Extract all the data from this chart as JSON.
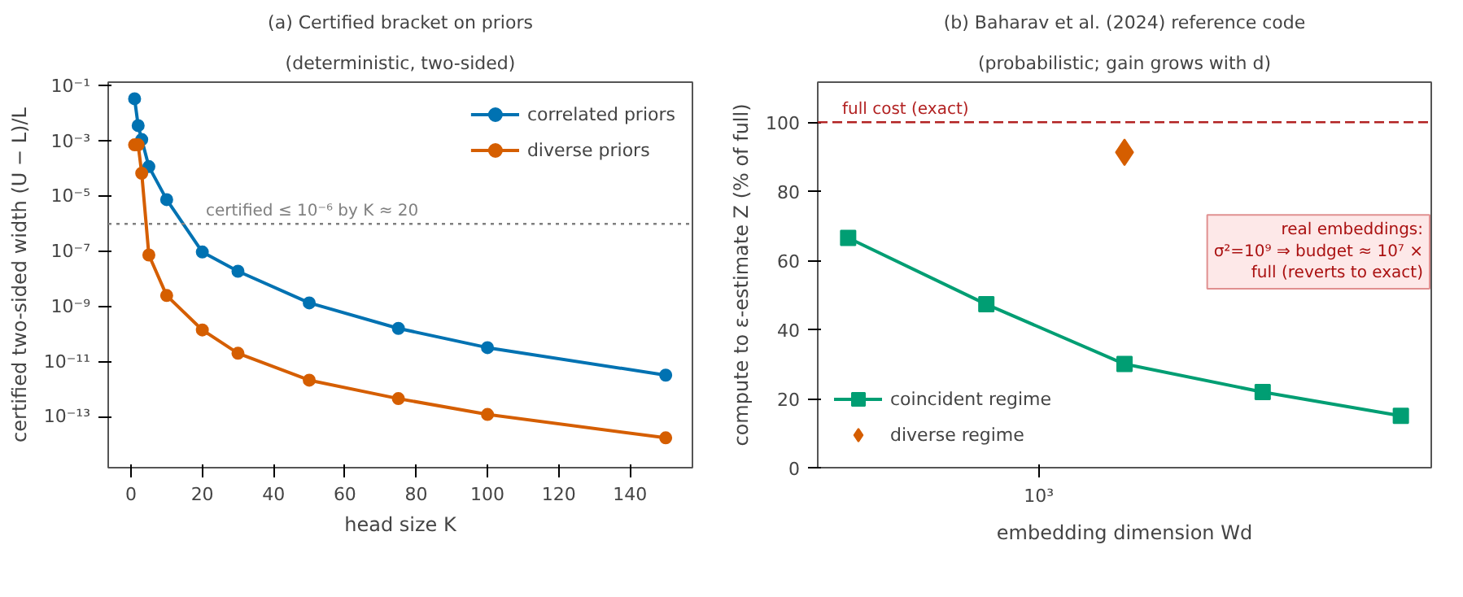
{
  "chart_data": [
    {
      "type": "line",
      "title": "(a) Certified bracket on priors",
      "subtitle": "(deterministic, two-sided)",
      "xlabel": "head size K",
      "ylabel": "certified two-sided width (U − L)/L",
      "log": "y",
      "grid": false,
      "legend": "top right",
      "marker": "circle",
      "line_style": "solid",
      "xlim": [
        -6.4,
        157.5
      ],
      "xticks": [
        0,
        20,
        40,
        60,
        80,
        100,
        120,
        140
      ],
      "ylim": [
        1.4e-15,
        0.14
      ],
      "yticks": [
        {
          "value": 0.1,
          "label": "10⁻¹"
        },
        {
          "value": 0.001,
          "label": "10⁻³"
        },
        {
          "value": 1e-05,
          "label": "10⁻⁵"
        },
        {
          "value": 1e-07,
          "label": "10⁻⁷"
        },
        {
          "value": 1e-09,
          "label": "10⁻⁹"
        },
        {
          "value": 1e-11,
          "label": "10⁻¹¹"
        },
        {
          "value": 1e-13,
          "label": "10⁻¹³"
        }
      ],
      "series": [
        {
          "name": "correlated priors",
          "color": "#0072b2",
          "x": [
            1,
            2,
            3,
            5,
            10,
            20,
            30,
            50,
            75,
            100,
            150
          ],
          "values": [
            0.035,
            0.0037,
            0.00115,
            0.00012,
            7.6e-06,
            9.5e-08,
            1.9e-08,
            1.35e-09,
            1.6e-10,
            3.2e-11,
            3.2e-12
          ]
        },
        {
          "name": "diverse priors",
          "color": "#d55e00",
          "x": [
            1,
            2,
            3,
            5,
            10,
            20,
            30,
            50,
            75,
            100,
            150
          ],
          "values": [
            0.00074,
            0.00074,
            6.9e-05,
            7.4e-08,
            2.5e-09,
            1.4e-10,
            2e-11,
            2.1e-12,
            4.5e-13,
            1.2e-13,
            1.7e-14
          ]
        }
      ],
      "ref_lines": [
        {
          "axis": "y",
          "value": 1e-06,
          "label": "certified ≤ 10⁻⁶ by K ≈ 20",
          "color": "#808080",
          "line_style": "dotted"
        }
      ]
    },
    {
      "type": "line",
      "title": "(b) Baharav et al. (2024) reference code",
      "subtitle": "(probabilistic; gain grows with d)",
      "xlabel": "embedding dimension Wd",
      "ylabel": "compute to ε-estimate Z (% of full)",
      "grid": false,
      "legend": "bottom left",
      "categories": [
        null,
        null,
        null,
        null,
        null
      ],
      "ylim": [
        0,
        111.6
      ],
      "yticks": [
        {
          "value": 0,
          "label": "0"
        },
        {
          "value": 20,
          "label": "20"
        },
        {
          "value": 40,
          "label": "40"
        },
        {
          "value": 60,
          "label": "60"
        },
        {
          "value": 80,
          "label": "80"
        },
        {
          "value": 100,
          "label": "100"
        }
      ],
      "series": [
        {
          "name": "coincident regime",
          "type": "line",
          "marker": "square",
          "color": "#009e73",
          "values": [
            66.5,
            47.3,
            30.0,
            21.9,
            15.0
          ]
        },
        {
          "name": "diverse regime",
          "type": "scatter",
          "marker": "diamond",
          "color": "#d55e00",
          "values": [
            null,
            null,
            91.3,
            null,
            null
          ]
        }
      ],
      "ref_lines": [
        {
          "axis": "y",
          "value": 100,
          "label": "full cost (exact)",
          "color": "#b22222",
          "line_style": "dashed"
        }
      ],
      "annotations": [
        "real embeddings:\nσ²=10⁹ ⇒ budget ≈ 10⁷ ×\nfull (reverts to exact)",
        "10³"
      ]
    }
  ]
}
